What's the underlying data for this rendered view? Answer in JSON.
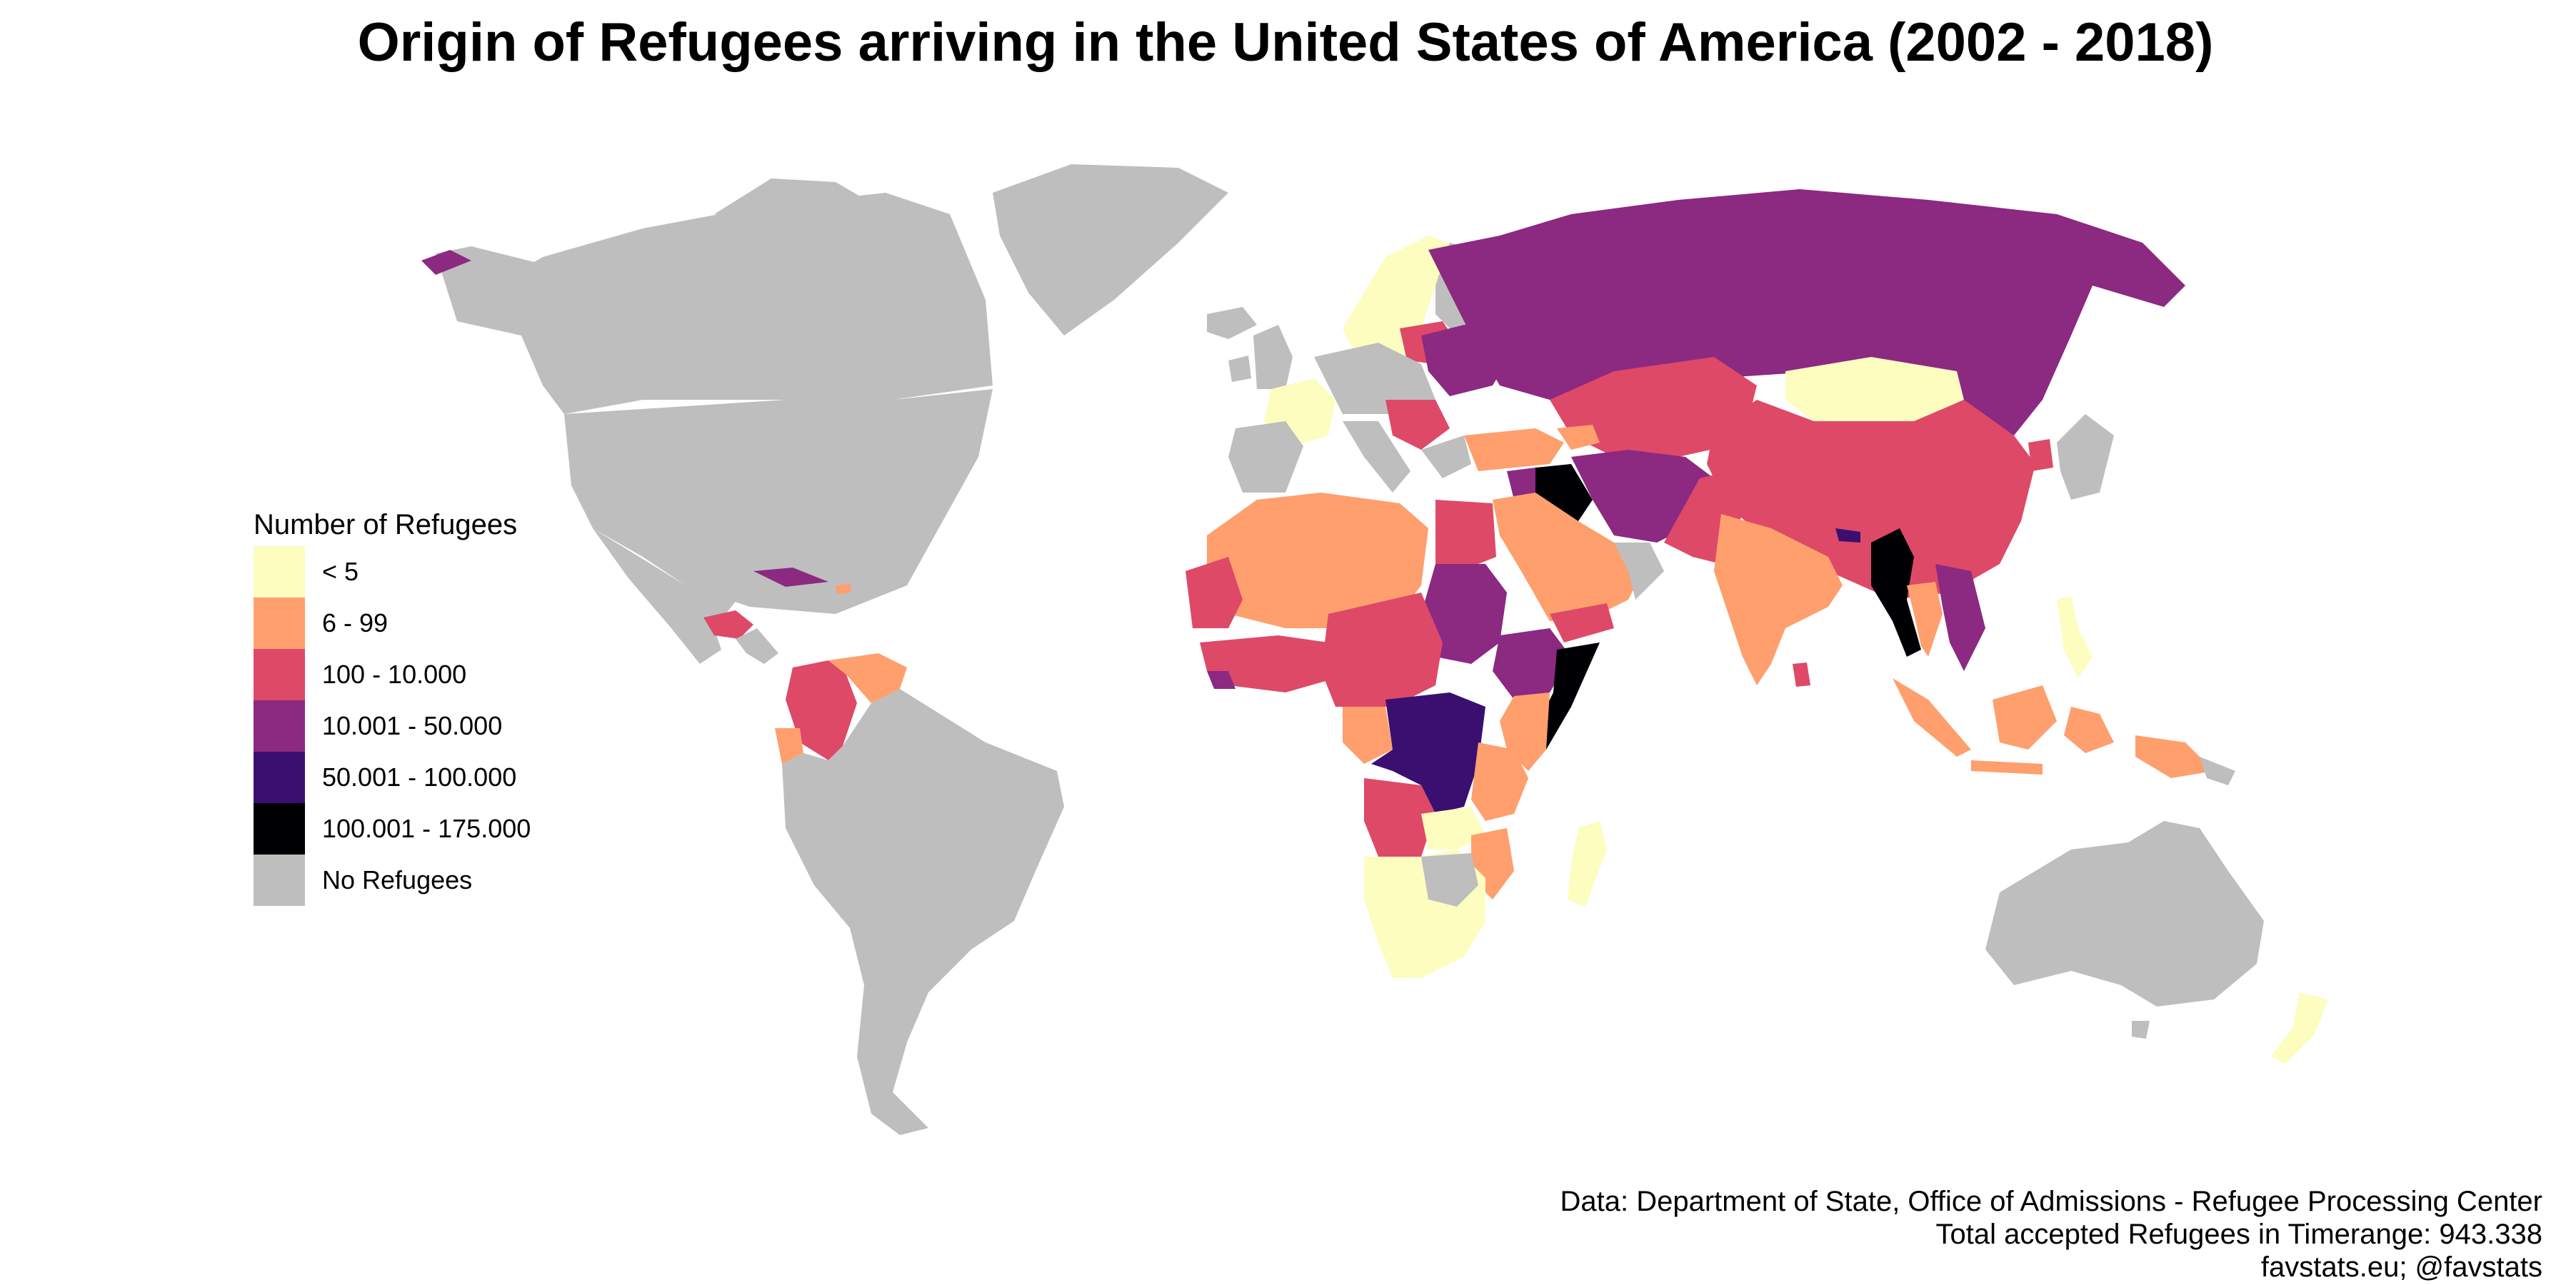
{
  "title": "Origin of Refugees arriving in the United States of America (2002 - 2018)",
  "legend": {
    "title": "Number of Refugees",
    "items": [
      {
        "label": "< 5",
        "color": "#fcfdbf"
      },
      {
        "label": "6 - 99",
        "color": "#fe9f6d"
      },
      {
        "label": "100 - 10.000",
        "color": "#de4968"
      },
      {
        "label": "10.001 - 50.000",
        "color": "#8c2981"
      },
      {
        "label": "50.001 - 100.000",
        "color": "#3b0f70"
      },
      {
        "label": "100.001 - 175.000",
        "color": "#000004"
      },
      {
        "label": "No Refugees",
        "color": "#bebebe"
      }
    ]
  },
  "credits": {
    "line1": "Data: Department of State, Office of Admissions - Refugee Processing Center",
    "line2": "Total accepted Refugees in Timerange: 943.338",
    "line3": "favstats.eu; @favstats"
  }
}
